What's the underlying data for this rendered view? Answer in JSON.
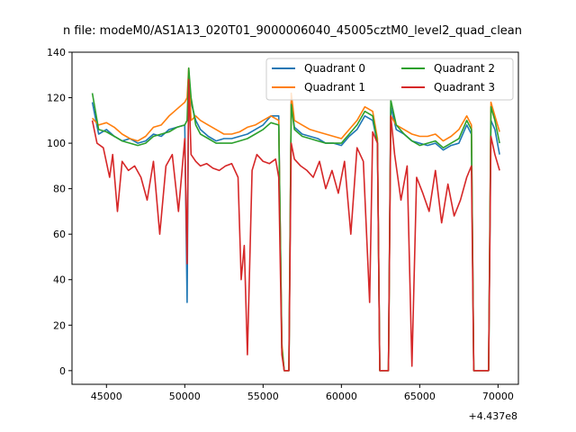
{
  "chart_data": {
    "type": "line",
    "title": "n file: modeM0/AS1A13_020T01_9000006040_45005cztM0_level2_quad_clean",
    "xlabel": "",
    "ylabel": "",
    "x_offset_label": "+4.437e8",
    "xlim": [
      42800,
      71300
    ],
    "ylim": [
      -6,
      140
    ],
    "xticks": [
      45000,
      50000,
      55000,
      60000,
      65000,
      70000
    ],
    "xtick_labels": [
      "45000",
      "50000",
      "55000",
      "60000",
      "65000",
      "70000"
    ],
    "yticks": [
      0,
      20,
      40,
      60,
      80,
      100,
      120,
      140
    ],
    "ytick_labels": [
      "0",
      "20",
      "40",
      "60",
      "80",
      "100",
      "120",
      "140"
    ],
    "legend_position": "top-right",
    "grid": false,
    "series": [
      {
        "name": "Quadrant 0",
        "color": "#1f77b4",
        "x": [
          44100,
          44500,
          45000,
          45500,
          46000,
          46500,
          47000,
          47500,
          48000,
          48500,
          49000,
          49500,
          50000,
          50150,
          50250,
          50400,
          50700,
          51000,
          51500,
          52000,
          52500,
          53000,
          53500,
          54000,
          54500,
          55000,
          55500,
          56000,
          56200,
          56350,
          56500,
          56650,
          56800,
          57000,
          57500,
          58000,
          58500,
          59000,
          59500,
          60000,
          60500,
          61000,
          61500,
          62000,
          62300,
          62450,
          62800,
          63000,
          63150,
          63500,
          64000,
          64500,
          65000,
          65500,
          66000,
          66500,
          67000,
          67500,
          68000,
          68300,
          68450,
          69000,
          69400,
          69550,
          69800,
          70100
        ],
        "y": [
          118,
          104,
          106,
          103,
          101,
          102,
          100,
          101,
          104,
          103,
          106,
          107,
          108,
          30,
          130,
          118,
          110,
          106,
          103,
          101,
          102,
          102,
          103,
          104,
          106,
          108,
          112,
          112,
          10,
          0,
          0,
          0,
          118,
          107,
          104,
          103,
          102,
          100,
          100,
          99,
          103,
          106,
          112,
          110,
          100,
          0,
          0,
          0,
          116,
          106,
          104,
          101,
          100,
          99,
          100,
          97,
          99,
          100,
          108,
          104,
          0,
          0,
          0,
          110,
          106,
          95
        ]
      },
      {
        "name": "Quadrant 1",
        "color": "#ff7f0e",
        "x": [
          44100,
          44500,
          45000,
          45500,
          46000,
          46500,
          47000,
          47500,
          48000,
          48500,
          49000,
          49500,
          50000,
          50150,
          50250,
          50400,
          50700,
          51000,
          51500,
          52000,
          52500,
          53000,
          53500,
          54000,
          54500,
          55000,
          55500,
          56000,
          56200,
          56350,
          56500,
          56650,
          56800,
          57000,
          57500,
          58000,
          58500,
          59000,
          59500,
          60000,
          60500,
          61000,
          61500,
          62000,
          62300,
          62450,
          62800,
          63000,
          63150,
          63500,
          64000,
          64500,
          65000,
          65500,
          66000,
          66500,
          67000,
          67500,
          68000,
          68300,
          68450,
          69000,
          69400,
          69550,
          69800,
          70100
        ],
        "y": [
          111,
          108,
          109,
          107,
          104,
          102,
          101,
          103,
          107,
          108,
          112,
          115,
          118,
          120,
          133,
          110,
          112,
          110,
          108,
          106,
          104,
          104,
          105,
          107,
          108,
          110,
          112,
          110,
          12,
          0,
          0,
          0,
          122,
          110,
          108,
          106,
          105,
          104,
          103,
          102,
          106,
          110,
          116,
          114,
          102,
          0,
          0,
          0,
          112,
          108,
          106,
          104,
          103,
          103,
          104,
          101,
          103,
          106,
          112,
          108,
          0,
          0,
          0,
          118,
          112,
          105
        ]
      },
      {
        "name": "Quadrant 2",
        "color": "#2ca02c",
        "x": [
          44100,
          44500,
          45000,
          45500,
          46000,
          46500,
          47000,
          47500,
          48000,
          48500,
          49000,
          49500,
          50000,
          50150,
          50250,
          50400,
          50700,
          51000,
          51500,
          52000,
          52500,
          53000,
          53500,
          54000,
          54500,
          55000,
          55500,
          56000,
          56200,
          56350,
          56500,
          56650,
          56800,
          57000,
          57500,
          58000,
          58500,
          59000,
          59500,
          60000,
          60500,
          61000,
          61500,
          62000,
          62300,
          62450,
          62800,
          63000,
          63150,
          63500,
          64000,
          64500,
          65000,
          65500,
          66000,
          66500,
          67000,
          67500,
          68000,
          68300,
          68450,
          69000,
          69400,
          69550,
          69800,
          70100
        ],
        "y": [
          122,
          106,
          105,
          103,
          101,
          100,
          99,
          100,
          103,
          104,
          105,
          107,
          108,
          110,
          133,
          120,
          108,
          104,
          102,
          100,
          100,
          100,
          101,
          102,
          104,
          106,
          109,
          108,
          10,
          0,
          0,
          0,
          117,
          106,
          103,
          102,
          101,
          100,
          100,
          100,
          104,
          108,
          114,
          112,
          100,
          0,
          0,
          0,
          119,
          108,
          104,
          101,
          99,
          100,
          101,
          98,
          100,
          102,
          110,
          106,
          0,
          0,
          0,
          116,
          110,
          100
        ]
      },
      {
        "name": "Quadrant 3",
        "color": "#d62728",
        "x": [
          44100,
          44400,
          44800,
          45200,
          45400,
          45700,
          46000,
          46400,
          46800,
          47200,
          47600,
          48000,
          48400,
          48800,
          49200,
          49600,
          50000,
          50150,
          50250,
          50400,
          50700,
          51000,
          51400,
          51800,
          52200,
          52600,
          53000,
          53400,
          53600,
          53800,
          54000,
          54300,
          54600,
          55000,
          55400,
          55800,
          56000,
          56200,
          56350,
          56500,
          56650,
          56800,
          57000,
          57400,
          57800,
          58200,
          58600,
          59000,
          59400,
          59800,
          60200,
          60600,
          61000,
          61400,
          61800,
          62000,
          62300,
          62450,
          62800,
          63000,
          63150,
          63400,
          63800,
          64200,
          64500,
          64800,
          65200,
          65600,
          66000,
          66400,
          66800,
          67200,
          67600,
          68000,
          68300,
          68450,
          69000,
          69400,
          69550,
          69800,
          70100
        ],
        "y": [
          110,
          100,
          98,
          85,
          95,
          70,
          92,
          88,
          90,
          85,
          75,
          92,
          60,
          90,
          95,
          70,
          102,
          47,
          128,
          95,
          92,
          90,
          91,
          89,
          88,
          90,
          91,
          85,
          40,
          55,
          7,
          88,
          95,
          92,
          91,
          93,
          85,
          7,
          0,
          0,
          0,
          100,
          93,
          90,
          88,
          85,
          92,
          80,
          88,
          78,
          92,
          60,
          98,
          92,
          30,
          105,
          100,
          0,
          0,
          0,
          112,
          95,
          75,
          90,
          2,
          85,
          78,
          70,
          88,
          65,
          82,
          68,
          75,
          85,
          90,
          0,
          0,
          0,
          103,
          95,
          88
        ]
      }
    ]
  }
}
